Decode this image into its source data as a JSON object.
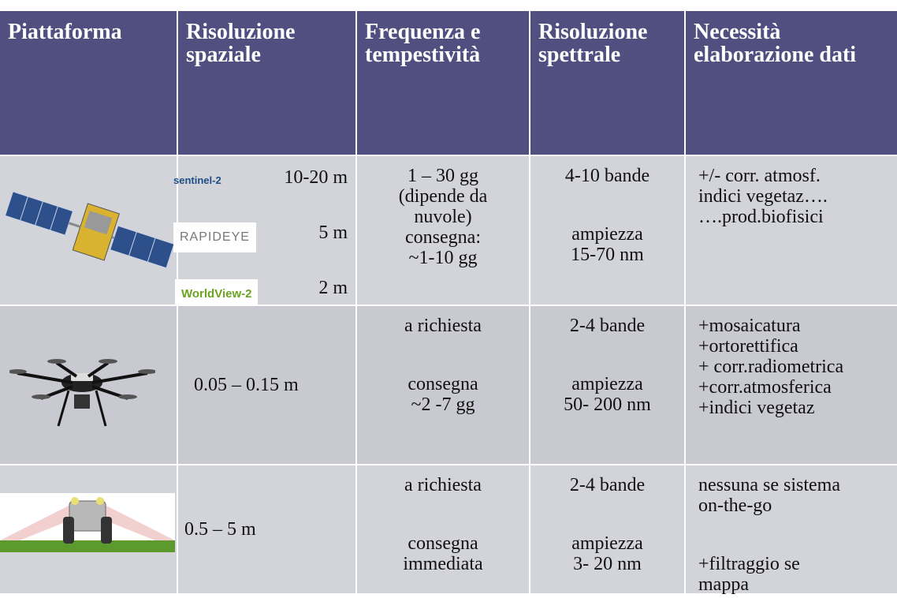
{
  "table": {
    "header": [
      "Piattaforma",
      "Risoluzione spaziale",
      "Frequenza e tempestività",
      "Risoluzione spettrale",
      "Necessità elaborazione dati"
    ],
    "rows": [
      {
        "spatial": [
          {
            "logo": "sentinel-2",
            "value": "10-20  m"
          },
          {
            "logo": "RAPIDEYE",
            "value": "5 m"
          },
          {
            "logo": "WorldView-2",
            "value": "2 m"
          }
        ],
        "frequency": [
          [
            "1 – 30 gg",
            "(dipende da",
            "nuvole)",
            "consegna:",
            "~1-10 gg"
          ]
        ],
        "spectral": [
          [
            "4-10 bande"
          ],
          [
            "ampiezza",
            "15-70 nm"
          ]
        ],
        "processing": [
          [
            "+/- corr. atmosf.",
            "indici vegetaz….",
            "….prod.biofisici"
          ]
        ]
      },
      {
        "spatial": "0.05 – 0.15 m",
        "frequency": [
          [
            "a richiesta"
          ],
          [
            "consegna",
            "~2 -7 gg"
          ]
        ],
        "spectral": [
          [
            "2-4 bande"
          ],
          [
            "ampiezza",
            "50- 200 nm"
          ]
        ],
        "processing": [
          [
            "+mosaicatura",
            "+ortorettifica",
            "+ corr.radiometrica",
            "+corr.atmosferica",
            "+indici vegetaz"
          ]
        ]
      },
      {
        "spatial": "0.5 – 5 m",
        "frequency": [
          [
            "a richiesta"
          ],
          [
            "consegna",
            "immediata"
          ]
        ],
        "spectral": [
          [
            "2-4 bande"
          ],
          [
            "ampiezza",
            "3- 20 nm"
          ]
        ],
        "processing": [
          [
            "nessuna se sistema",
            "on-the-go"
          ],
          [
            "+filtraggio se",
            "mappa"
          ]
        ]
      }
    ]
  }
}
